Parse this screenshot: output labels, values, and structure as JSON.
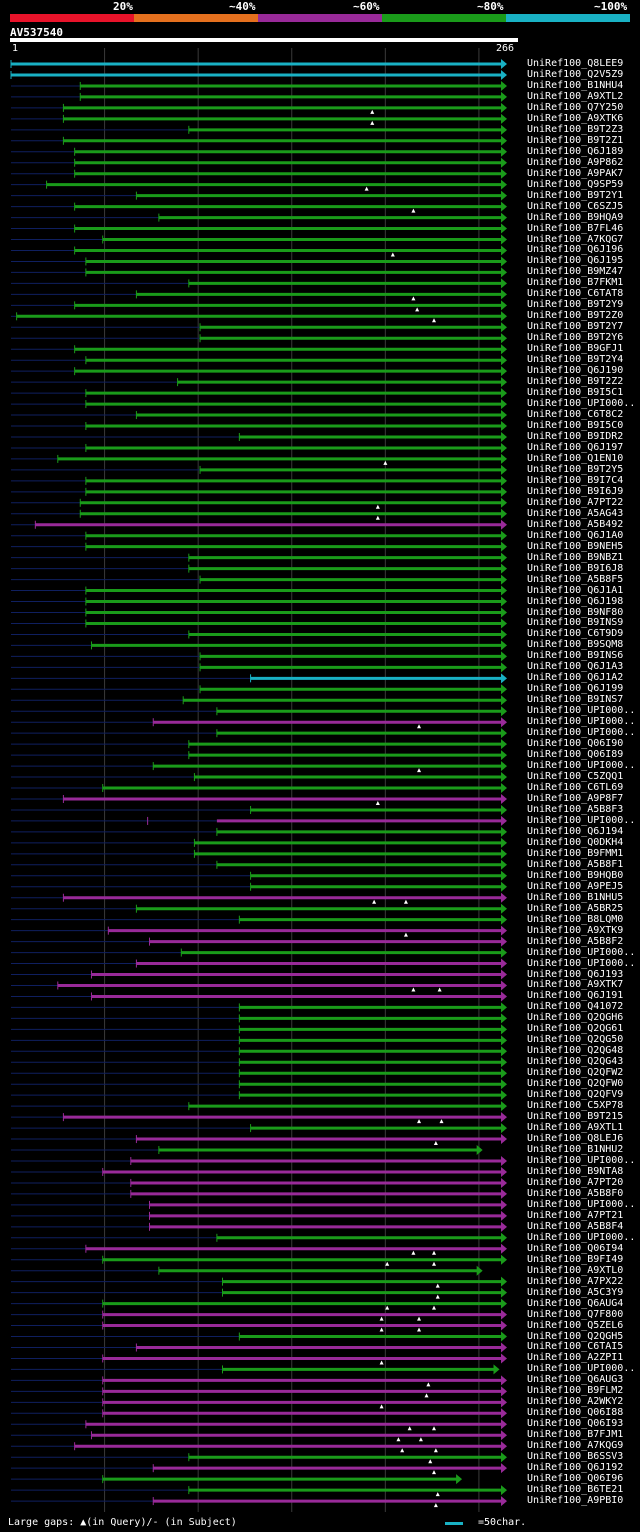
{
  "colors": {
    "c20": "#e8132a",
    "c40": "#e5701e",
    "c60": "#992a99",
    "c80": "#1a9b1a",
    "c100": "#19b1c4",
    "gap": "#0f1f5f",
    "grid": "#3a3a3a",
    "background": "#000000"
  },
  "scale": {
    "labels": [
      "20%",
      "~40%",
      "~60%",
      "~80%",
      "~100%"
    ]
  },
  "query": {
    "id": "AV537540",
    "start_label": "1",
    "end_label": "266",
    "length": 266
  },
  "hits": [
    {
      "name": "UniRef100_Q8LEE9",
      "c": "c100",
      "s": 1,
      "e": 266,
      "g": 0,
      "m": []
    },
    {
      "name": "UniRef100_Q2V5Z9",
      "c": "c100",
      "s": 1,
      "e": 266,
      "g": 0,
      "m": []
    },
    {
      "name": "UniRef100_B1NHU4",
      "c": "c80",
      "s": 38,
      "e": 266,
      "g": 0,
      "m": []
    },
    {
      "name": "UniRef100_A9XTL2",
      "c": "c80",
      "s": 38,
      "e": 266,
      "g": 0,
      "m": []
    },
    {
      "name": "UniRef100_Q7Y250",
      "c": "c80",
      "s": 29,
      "e": 266,
      "g": 0,
      "m": [
        194
      ]
    },
    {
      "name": "UniRef100_A9XTK6",
      "c": "c80",
      "s": 29,
      "e": 266,
      "g": 0,
      "m": [
        194
      ]
    },
    {
      "name": "UniRef100_B9T2Z3",
      "c": "c80",
      "s": 96,
      "e": 266,
      "g": 0,
      "m": []
    },
    {
      "name": "UniRef100_B9T2Z1",
      "c": "c80",
      "s": 29,
      "e": 266,
      "g": 0,
      "m": []
    },
    {
      "name": "UniRef100_Q6J189",
      "c": "c80",
      "s": 35,
      "e": 266,
      "g": 0,
      "m": []
    },
    {
      "name": "UniRef100_A9P862",
      "c": "c80",
      "s": 35,
      "e": 266,
      "g": 0,
      "m": []
    },
    {
      "name": "UniRef100_A9PAK7",
      "c": "c80",
      "s": 35,
      "e": 266,
      "g": 0,
      "m": []
    },
    {
      "name": "UniRef100_Q9SP59",
      "c": "c80",
      "s": 20,
      "e": 266,
      "g": 0,
      "m": [
        191
      ]
    },
    {
      "name": "UniRef100_B9T2Y1",
      "c": "c80",
      "s": 68,
      "e": 266,
      "g": 0,
      "m": []
    },
    {
      "name": "UniRef100_C6SZJ5",
      "c": "c80",
      "s": 35,
      "e": 266,
      "g": 0,
      "m": [
        216
      ]
    },
    {
      "name": "UniRef100_B9HQA9",
      "c": "c80",
      "s": 80,
      "e": 266,
      "g": 0,
      "m": []
    },
    {
      "name": "UniRef100_B7FL46",
      "c": "c80",
      "s": 35,
      "e": 266,
      "g": 0,
      "m": []
    },
    {
      "name": "UniRef100_A7KQG7",
      "c": "c80",
      "s": 50,
      "e": 266,
      "g": 0,
      "m": []
    },
    {
      "name": "UniRef100_Q6J196",
      "c": "c80",
      "s": 35,
      "e": 266,
      "g": 0,
      "m": [
        205
      ]
    },
    {
      "name": "UniRef100_Q6J195",
      "c": "c80",
      "s": 41,
      "e": 266,
      "g": 0,
      "m": []
    },
    {
      "name": "UniRef100_B9MZ47",
      "c": "c80",
      "s": 41,
      "e": 266,
      "g": 0,
      "m": []
    },
    {
      "name": "UniRef100_B7FKM1",
      "c": "c80",
      "s": 96,
      "e": 266,
      "g": 0,
      "m": []
    },
    {
      "name": "UniRef100_C6TAT8",
      "c": "c80",
      "s": 68,
      "e": 266,
      "g": 0,
      "m": [
        216
      ]
    },
    {
      "name": "UniRef100_B9T2Y9",
      "c": "c80",
      "s": 35,
      "e": 266,
      "g": 0,
      "m": [
        218
      ]
    },
    {
      "name": "UniRef100_B9T2Z0",
      "c": "c80",
      "s": 4,
      "e": 266,
      "g": 0,
      "m": [
        227
      ]
    },
    {
      "name": "UniRef100_B9T2Y7",
      "c": "c80",
      "s": 102,
      "e": 266,
      "g": 0,
      "m": []
    },
    {
      "name": "UniRef100_B9T2Y6",
      "c": "c80",
      "s": 102,
      "e": 266,
      "g": 0,
      "m": []
    },
    {
      "name": "UniRef100_B9GFJ1",
      "c": "c80",
      "s": 35,
      "e": 266,
      "g": 0,
      "m": []
    },
    {
      "name": "UniRef100_B9T2Y4",
      "c": "c80",
      "s": 41,
      "e": 266,
      "g": 0,
      "m": []
    },
    {
      "name": "UniRef100_Q6J190",
      "c": "c80",
      "s": 35,
      "e": 266,
      "g": 0,
      "m": []
    },
    {
      "name": "UniRef100_B9T2Z2",
      "c": "c80",
      "s": 90,
      "e": 266,
      "g": 0,
      "m": []
    },
    {
      "name": "UniRef100_B9I5C1",
      "c": "c80",
      "s": 41,
      "e": 266,
      "g": 0,
      "m": []
    },
    {
      "name": "UniRef100_UPI000..",
      "c": "c80",
      "s": 41,
      "e": 266,
      "g": 0,
      "m": []
    },
    {
      "name": "UniRef100_C6T8C2",
      "c": "c80",
      "s": 68,
      "e": 266,
      "g": 0,
      "m": []
    },
    {
      "name": "UniRef100_B9I5C0",
      "c": "c80",
      "s": 41,
      "e": 266,
      "g": 0,
      "m": []
    },
    {
      "name": "UniRef100_B9IDR2",
      "c": "c80",
      "s": 123,
      "e": 266,
      "g": 0,
      "m": []
    },
    {
      "name": "UniRef100_Q6J197",
      "c": "c80",
      "s": 41,
      "e": 266,
      "g": 0,
      "m": []
    },
    {
      "name": "UniRef100_Q1EN10",
      "c": "c80",
      "s": 26,
      "e": 266,
      "g": 0,
      "m": [
        201
      ]
    },
    {
      "name": "UniRef100_B9T2Y5",
      "c": "c80",
      "s": 102,
      "e": 266,
      "g": 0,
      "m": []
    },
    {
      "name": "UniRef100_B9I7C4",
      "c": "c80",
      "s": 41,
      "e": 266,
      "g": 0,
      "m": []
    },
    {
      "name": "UniRef100_B9I6J9",
      "c": "c80",
      "s": 41,
      "e": 266,
      "g": 0,
      "m": []
    },
    {
      "name": "UniRef100_A7PT22",
      "c": "c80",
      "s": 38,
      "e": 266,
      "g": 0,
      "m": [
        197
      ]
    },
    {
      "name": "UniRef100_A5AG43",
      "c": "c80",
      "s": 38,
      "e": 266,
      "g": 0,
      "m": [
        197
      ]
    },
    {
      "name": "UniRef100_A5B492",
      "c": "c60",
      "s": 14,
      "e": 266,
      "g": 0,
      "m": []
    },
    {
      "name": "UniRef100_Q6J1A0",
      "c": "c80",
      "s": 41,
      "e": 266,
      "g": 0,
      "m": []
    },
    {
      "name": "UniRef100_B9NEH5",
      "c": "c80",
      "s": 41,
      "e": 266,
      "g": 0,
      "m": []
    },
    {
      "name": "UniRef100_B9NBZ1",
      "c": "c80",
      "s": 96,
      "e": 266,
      "g": 0,
      "m": []
    },
    {
      "name": "UniRef100_B9I6J8",
      "c": "c80",
      "s": 96,
      "e": 266,
      "g": 0,
      "m": []
    },
    {
      "name": "UniRef100_A5B8F5",
      "c": "c80",
      "s": 102,
      "e": 266,
      "g": 0,
      "m": []
    },
    {
      "name": "UniRef100_Q6J1A1",
      "c": "c80",
      "s": 41,
      "e": 266,
      "g": 0,
      "m": []
    },
    {
      "name": "UniRef100_Q6J198",
      "c": "c80",
      "s": 41,
      "e": 266,
      "g": 0,
      "m": []
    },
    {
      "name": "UniRef100_B9NF80",
      "c": "c80",
      "s": 41,
      "e": 266,
      "g": 0,
      "m": []
    },
    {
      "name": "UniRef100_B9INS9",
      "c": "c80",
      "s": 41,
      "e": 266,
      "g": 0,
      "m": []
    },
    {
      "name": "UniRef100_C6T9D9",
      "c": "c80",
      "s": 96,
      "e": 266,
      "g": 0,
      "m": []
    },
    {
      "name": "UniRef100_B9SQM8",
      "c": "c80",
      "s": 44,
      "e": 266,
      "g": 0,
      "m": []
    },
    {
      "name": "UniRef100_B9INS6",
      "c": "c80",
      "s": 102,
      "e": 266,
      "g": 0,
      "m": []
    },
    {
      "name": "UniRef100_Q6J1A3",
      "c": "c80",
      "s": 102,
      "e": 266,
      "g": 0,
      "m": []
    },
    {
      "name": "UniRef100_Q6J1A2",
      "c": "c100",
      "s": 129,
      "e": 266,
      "g": 0,
      "m": []
    },
    {
      "name": "UniRef100_Q6J199",
      "c": "c80",
      "s": 102,
      "e": 266,
      "g": 0,
      "m": []
    },
    {
      "name": "UniRef100_B9INS7",
      "c": "c80",
      "s": 93,
      "e": 266,
      "g": 0,
      "m": []
    },
    {
      "name": "UniRef100_UPI000..",
      "c": "c80",
      "s": 111,
      "e": 266,
      "g": 0,
      "m": []
    },
    {
      "name": "UniRef100_UPI000..",
      "c": "c60",
      "s": 77,
      "e": 266,
      "g": 0,
      "m": [
        219
      ]
    },
    {
      "name": "UniRef100_UPI000..",
      "c": "c80",
      "s": 111,
      "e": 266,
      "g": 0,
      "m": []
    },
    {
      "name": "UniRef100_Q06I90",
      "c": "c80",
      "s": 96,
      "e": 266,
      "g": 0,
      "m": []
    },
    {
      "name": "UniRef100_Q06I89",
      "c": "c80",
      "s": 96,
      "e": 266,
      "g": 0,
      "m": []
    },
    {
      "name": "UniRef100_UPI000..",
      "c": "c80",
      "s": 77,
      "e": 266,
      "g": 0,
      "m": [
        219
      ]
    },
    {
      "name": "UniRef100_C5ZQQ1",
      "c": "c80",
      "s": 99,
      "e": 266,
      "g": 0,
      "m": []
    },
    {
      "name": "UniRef100_C6TL69",
      "c": "c80",
      "s": 50,
      "e": 266,
      "g": 0,
      "m": []
    },
    {
      "name": "UniRef100_A9P8F7",
      "c": "c60",
      "s": 29,
      "e": 266,
      "g": 0,
      "m": [
        197
      ]
    },
    {
      "name": "UniRef100_A5B8F3",
      "c": "c80",
      "s": 129,
      "e": 266,
      "g": 0,
      "m": []
    },
    {
      "name": "UniRef100_UPI000..",
      "c": "c60",
      "s": 74,
      "e": 266,
      "g": 111,
      "m": []
    },
    {
      "name": "UniRef100_Q6J194",
      "c": "c80",
      "s": 111,
      "e": 266,
      "g": 0,
      "m": []
    },
    {
      "name": "UniRef100_Q0DKH4",
      "c": "c80",
      "s": 99,
      "e": 266,
      "g": 0,
      "m": []
    },
    {
      "name": "UniRef100_B9FMM1",
      "c": "c80",
      "s": 99,
      "e": 266,
      "g": 0,
      "m": []
    },
    {
      "name": "UniRef100_A5B8F1",
      "c": "c80",
      "s": 111,
      "e": 266,
      "g": 0,
      "m": []
    },
    {
      "name": "UniRef100_B9HQB0",
      "c": "c80",
      "s": 129,
      "e": 266,
      "g": 0,
      "m": []
    },
    {
      "name": "UniRef100_A9PEJ5",
      "c": "c80",
      "s": 129,
      "e": 266,
      "g": 0,
      "m": []
    },
    {
      "name": "UniRef100_B1NHU5",
      "c": "c60",
      "s": 29,
      "e": 266,
      "g": 0,
      "m": [
        195,
        212
      ]
    },
    {
      "name": "UniRef100_A5BR25",
      "c": "c80",
      "s": 68,
      "e": 266,
      "g": 0,
      "m": []
    },
    {
      "name": "UniRef100_B8LQM0",
      "c": "c80",
      "s": 123,
      "e": 266,
      "g": 0,
      "m": []
    },
    {
      "name": "UniRef100_A9XTK9",
      "c": "c60",
      "s": 53,
      "e": 266,
      "g": 0,
      "m": [
        212
      ]
    },
    {
      "name": "UniRef100_A5B8F2",
      "c": "c60",
      "s": 75,
      "e": 266,
      "g": 0,
      "m": []
    },
    {
      "name": "UniRef100_UPI000..",
      "c": "c80",
      "s": 92,
      "e": 266,
      "g": 0,
      "m": []
    },
    {
      "name": "UniRef100_UPI000..",
      "c": "c60",
      "s": 68,
      "e": 266,
      "g": 0,
      "m": []
    },
    {
      "name": "UniRef100_Q6J193",
      "c": "c60",
      "s": 44,
      "e": 266,
      "g": 0,
      "m": []
    },
    {
      "name": "UniRef100_A9XTK7",
      "c": "c60",
      "s": 26,
      "e": 266,
      "g": 0,
      "m": [
        216,
        230
      ]
    },
    {
      "name": "UniRef100_Q6J191",
      "c": "c60",
      "s": 44,
      "e": 266,
      "g": 0,
      "m": []
    },
    {
      "name": "UniRef100_Q41072",
      "c": "c80",
      "s": 123,
      "e": 266,
      "g": 0,
      "m": []
    },
    {
      "name": "UniRef100_Q2QGH6",
      "c": "c80",
      "s": 123,
      "e": 266,
      "g": 0,
      "m": []
    },
    {
      "name": "UniRef100_Q2QG61",
      "c": "c80",
      "s": 123,
      "e": 266,
      "g": 0,
      "m": []
    },
    {
      "name": "UniRef100_Q2QG50",
      "c": "c80",
      "s": 123,
      "e": 266,
      "g": 0,
      "m": []
    },
    {
      "name": "UniRef100_Q2QG48",
      "c": "c80",
      "s": 123,
      "e": 266,
      "g": 0,
      "m": []
    },
    {
      "name": "UniRef100_Q2QG43",
      "c": "c80",
      "s": 123,
      "e": 266,
      "g": 0,
      "m": []
    },
    {
      "name": "UniRef100_Q2QFW2",
      "c": "c80",
      "s": 123,
      "e": 266,
      "g": 0,
      "m": []
    },
    {
      "name": "UniRef100_Q2QFW0",
      "c": "c80",
      "s": 123,
      "e": 266,
      "g": 0,
      "m": []
    },
    {
      "name": "UniRef100_Q2QFV9",
      "c": "c80",
      "s": 123,
      "e": 266,
      "g": 0,
      "m": []
    },
    {
      "name": "UniRef100_C5XP78",
      "c": "c80",
      "s": 96,
      "e": 266,
      "g": 0,
      "m": []
    },
    {
      "name": "UniRef100_B9T215",
      "c": "c60",
      "s": 29,
      "e": 266,
      "g": 0,
      "m": [
        219,
        231
      ]
    },
    {
      "name": "UniRef100_A9XTL1",
      "c": "c80",
      "s": 129,
      "e": 266,
      "g": 0,
      "m": []
    },
    {
      "name": "UniRef100_Q8LEJ6",
      "c": "c60",
      "s": 68,
      "e": 266,
      "g": 0,
      "m": [
        228
      ]
    },
    {
      "name": "UniRef100_B1NHU2",
      "c": "c80",
      "s": 80,
      "e": 253,
      "g": 0,
      "m": []
    },
    {
      "name": "UniRef100_UPI000..",
      "c": "c60",
      "s": 65,
      "e": 266,
      "g": 0,
      "m": []
    },
    {
      "name": "UniRef100_B9NTA8",
      "c": "c60",
      "s": 50,
      "e": 266,
      "g": 0,
      "m": []
    },
    {
      "name": "UniRef100_A7PT20",
      "c": "c60",
      "s": 65,
      "e": 266,
      "g": 0,
      "m": []
    },
    {
      "name": "UniRef100_A5B8F0",
      "c": "c60",
      "s": 65,
      "e": 266,
      "g": 0,
      "m": []
    },
    {
      "name": "UniRef100_UPI000..",
      "c": "c60",
      "s": 75,
      "e": 266,
      "g": 0,
      "m": []
    },
    {
      "name": "UniRef100_A7PT21",
      "c": "c60",
      "s": 75,
      "e": 266,
      "g": 0,
      "m": []
    },
    {
      "name": "UniRef100_A5B8F4",
      "c": "c60",
      "s": 75,
      "e": 266,
      "g": 0,
      "m": []
    },
    {
      "name": "UniRef100_UPI000..",
      "c": "c80",
      "s": 111,
      "e": 266,
      "g": 0,
      "m": []
    },
    {
      "name": "UniRef100_Q06I94",
      "c": "c60",
      "s": 41,
      "e": 266,
      "g": 0,
      "m": [
        216,
        227
      ]
    },
    {
      "name": "UniRef100_B9FI49",
      "c": "c80",
      "s": 50,
      "e": 266,
      "g": 0,
      "m": [
        202,
        227
      ]
    },
    {
      "name": "UniRef100_A9XTL0",
      "c": "c80",
      "s": 80,
      "e": 253,
      "g": 0,
      "m": []
    },
    {
      "name": "UniRef100_A7PX22",
      "c": "c80",
      "s": 114,
      "e": 266,
      "g": 0,
      "m": [
        229
      ]
    },
    {
      "name": "UniRef100_A5C3Y9",
      "c": "c80",
      "s": 114,
      "e": 266,
      "g": 0,
      "m": [
        229
      ]
    },
    {
      "name": "UniRef100_Q6AUG4",
      "c": "c80",
      "s": 50,
      "e": 266,
      "g": 0,
      "m": [
        202,
        227
      ]
    },
    {
      "name": "UniRef100_Q7F800",
      "c": "c60",
      "s": 50,
      "e": 266,
      "g": 0,
      "m": [
        199,
        219
      ]
    },
    {
      "name": "UniRef100_Q5ZEL6",
      "c": "c60",
      "s": 50,
      "e": 266,
      "g": 0,
      "m": [
        199,
        219
      ]
    },
    {
      "name": "UniRef100_Q2QGH5",
      "c": "c80",
      "s": 123,
      "e": 266,
      "g": 0,
      "m": []
    },
    {
      "name": "UniRef100_C6TAI5",
      "c": "c60",
      "s": 68,
      "e": 266,
      "g": 0,
      "m": []
    },
    {
      "name": "UniRef100_A2ZPI1",
      "c": "c60",
      "s": 50,
      "e": 266,
      "g": 0,
      "m": [
        199
      ]
    },
    {
      "name": "UniRef100_UPI000..",
      "c": "c80",
      "s": 114,
      "e": 262,
      "g": 0,
      "m": []
    },
    {
      "name": "UniRef100_Q6AUG3",
      "c": "c60",
      "s": 50,
      "e": 266,
      "g": 0,
      "m": [
        224
      ]
    },
    {
      "name": "UniRef100_B9FLM2",
      "c": "c60",
      "s": 50,
      "e": 266,
      "g": 0,
      "m": [
        223
      ]
    },
    {
      "name": "UniRef100_A2WKY2",
      "c": "c60",
      "s": 50,
      "e": 266,
      "g": 0,
      "m": [
        199
      ]
    },
    {
      "name": "UniRef100_Q06I88",
      "c": "c60",
      "s": 50,
      "e": 266,
      "g": 0,
      "m": []
    },
    {
      "name": "UniRef100_Q06I93",
      "c": "c60",
      "s": 41,
      "e": 266,
      "g": 0,
      "m": [
        214,
        227
      ]
    },
    {
      "name": "UniRef100_B7FJM1",
      "c": "c60",
      "s": 44,
      "e": 266,
      "g": 0,
      "m": [
        208,
        220
      ]
    },
    {
      "name": "UniRef100_A7KQG9",
      "c": "c60",
      "s": 35,
      "e": 266,
      "g": 0,
      "m": [
        210,
        228
      ]
    },
    {
      "name": "UniRef100_B6SSV3",
      "c": "c80",
      "s": 96,
      "e": 266,
      "g": 0,
      "m": [
        225
      ]
    },
    {
      "name": "UniRef100_Q6J192",
      "c": "c60",
      "s": 77,
      "e": 266,
      "g": 0,
      "m": [
        227
      ]
    },
    {
      "name": "UniRef100_Q06I96",
      "c": "c80",
      "s": 50,
      "e": 242,
      "g": 0,
      "m": []
    },
    {
      "name": "UniRef100_B6TE21",
      "c": "c80",
      "s": 96,
      "e": 266,
      "g": 0,
      "m": [
        229
      ]
    },
    {
      "name": "UniRef100_A9PBI0",
      "c": "c60",
      "s": 77,
      "e": 266,
      "g": 0,
      "m": [
        228
      ]
    }
  ],
  "footer": {
    "gaps_text": "Large gaps: ▲(in Query)/- (in Subject)",
    "legend_text": "=50char."
  }
}
